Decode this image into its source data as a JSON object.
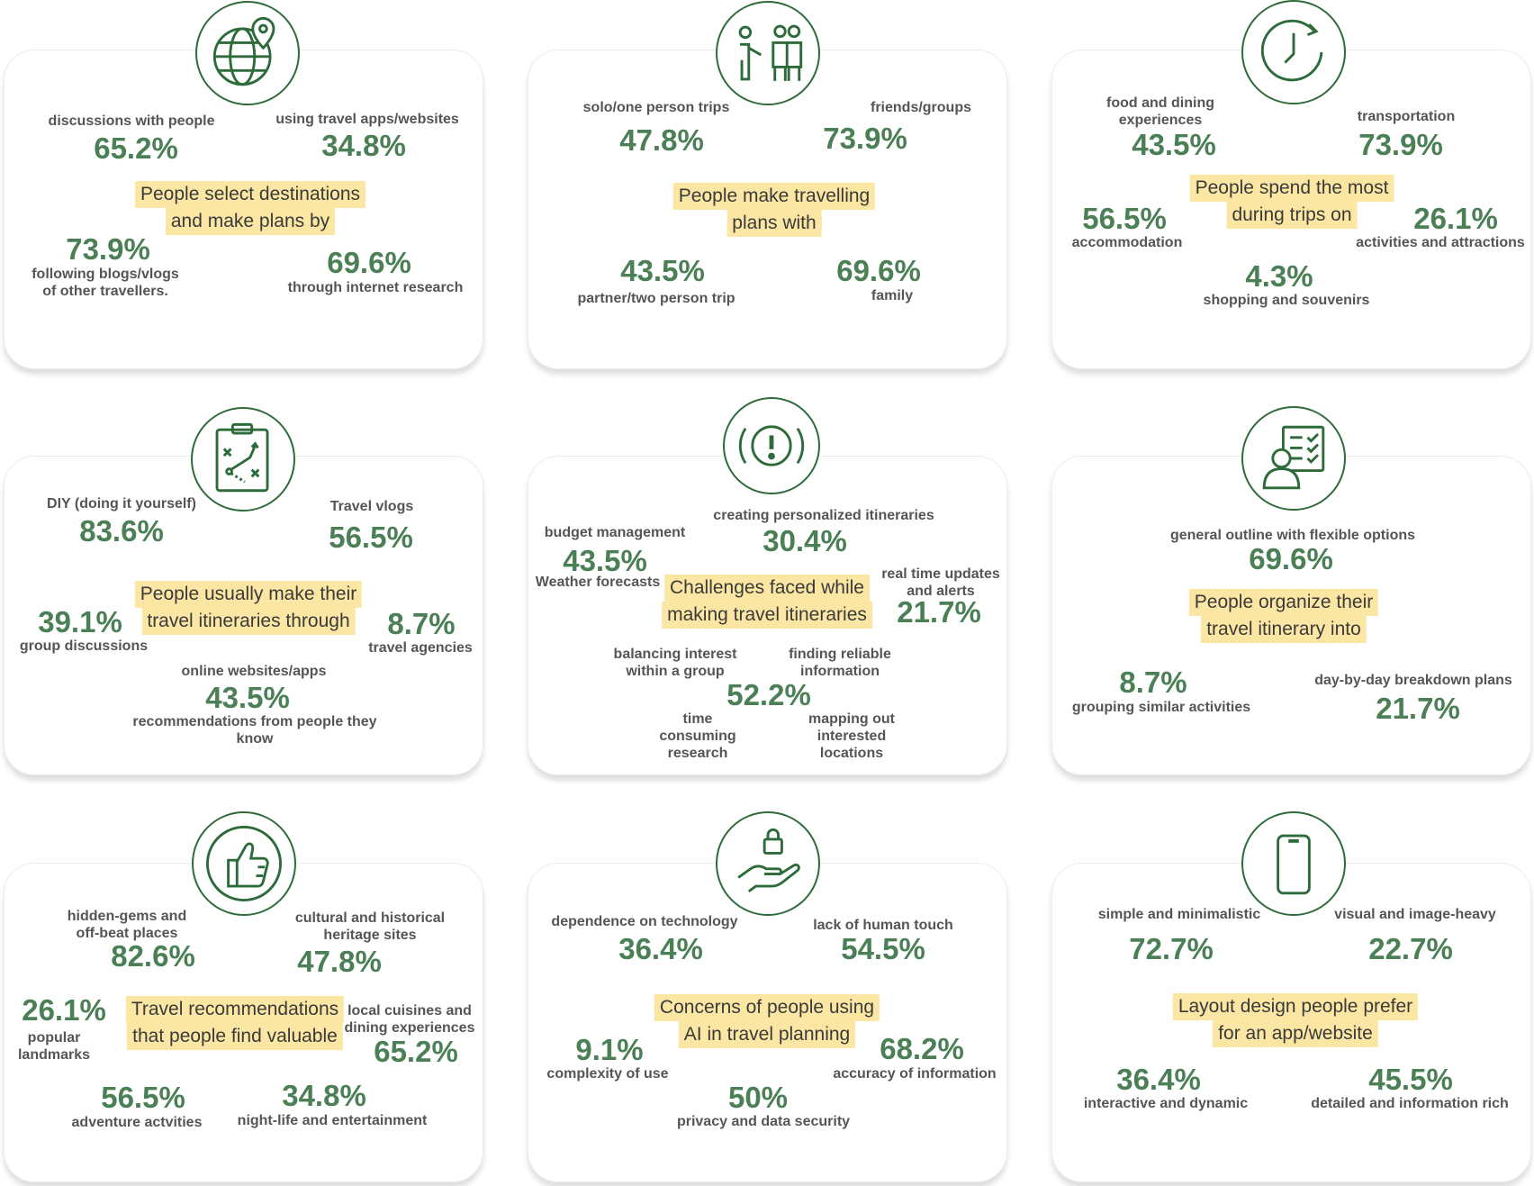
{
  "colors": {
    "accent_green": "#4b7f55",
    "icon_green": "#2e6b3b",
    "highlight_yellow": "#fbe7a3",
    "label_gray": "#555555"
  },
  "cards": [
    {
      "icon": "globe-pin-icon",
      "heading": [
        "People select destinations",
        "and make plans by"
      ],
      "stats": [
        {
          "label": [
            "discussions with people"
          ],
          "value": "65.2%"
        },
        {
          "label": [
            "using travel apps/websites"
          ],
          "value": "34.8%"
        },
        {
          "label": [
            "following blogs/vlogs",
            "of other travellers."
          ],
          "value": "73.9%"
        },
        {
          "label": [
            "through internet research"
          ],
          "value": "69.6%"
        }
      ]
    },
    {
      "icon": "people-group-icon",
      "heading": [
        "People make travelling",
        "plans with"
      ],
      "stats": [
        {
          "label": [
            "solo/one person trips"
          ],
          "value": "47.8%"
        },
        {
          "label": [
            "friends/groups"
          ],
          "value": "73.9%"
        },
        {
          "label": [
            "partner/two person trip"
          ],
          "value": "43.5%"
        },
        {
          "label": [
            "family"
          ],
          "value": "69.6%"
        }
      ]
    },
    {
      "icon": "clock-refresh-icon",
      "heading": [
        "People spend the most",
        "during trips on"
      ],
      "stats": [
        {
          "label": [
            "food and dining",
            "experiences"
          ],
          "value": "43.5%"
        },
        {
          "label": [
            "transportation"
          ],
          "value": "73.9%"
        },
        {
          "label": [
            "accommodation"
          ],
          "value": "56.5%"
        },
        {
          "label": [
            "activities and attractions"
          ],
          "value": "26.1%"
        },
        {
          "label": [
            "shopping and souvenirs"
          ],
          "value": "4.3%"
        }
      ]
    },
    {
      "icon": "clipboard-strategy-icon",
      "heading": [
        "People usually make their",
        "travel itineraries through"
      ],
      "stats": [
        {
          "label": [
            "DIY (doing it yourself)"
          ],
          "value": "83.6%"
        },
        {
          "label": [
            "Travel vlogs"
          ],
          "value": "56.5%"
        },
        {
          "label": [
            "group discussions"
          ],
          "value": "39.1%"
        },
        {
          "label": [
            "travel agencies"
          ],
          "value": "8.7%"
        },
        {
          "label": [
            "online websites/apps"
          ],
          "value": "43.5%"
        },
        {
          "label": [
            "recommendations from people they",
            "know"
          ],
          "value": ""
        }
      ]
    },
    {
      "icon": "alert-exclamation-icon",
      "heading": [
        "Challenges faced while",
        "making travel itineraries"
      ],
      "stats": [
        {
          "label": [
            "budget management"
          ],
          "value": "43.5%"
        },
        {
          "label": [
            "Weather forecasts"
          ],
          "value": ""
        },
        {
          "label": [
            "creating personalized itineraries"
          ],
          "value": "30.4%"
        },
        {
          "label": [
            "real time updates",
            "and alerts"
          ],
          "value": "21.7%"
        },
        {
          "label": [
            "balancing interest",
            "within a group"
          ],
          "value": ""
        },
        {
          "label": [
            "finding reliable",
            "information"
          ],
          "value": "52.2%"
        },
        {
          "label": [
            "time",
            "consuming",
            "research"
          ],
          "value": ""
        },
        {
          "label": [
            "mapping out",
            "interested",
            "locations"
          ],
          "value": ""
        }
      ]
    },
    {
      "icon": "person-checklist-icon",
      "heading": [
        "People organize their",
        "travel itinerary into"
      ],
      "stats": [
        {
          "label": [
            "general outline with flexible options"
          ],
          "value": "69.6%"
        },
        {
          "label": [
            "grouping similar activities"
          ],
          "value": "8.7%"
        },
        {
          "label": [
            "day-by-day breakdown plans"
          ],
          "value": "21.7%"
        }
      ]
    },
    {
      "icon": "thumbs-up-icon",
      "heading": [
        "Travel recommendations",
        "that people find valuable"
      ],
      "stats": [
        {
          "label": [
            "hidden-gems and",
            "off-beat places"
          ],
          "value": "82.6%"
        },
        {
          "label": [
            "cultural and historical",
            "heritage sites"
          ],
          "value": "47.8%"
        },
        {
          "label": [
            "popular",
            "landmarks"
          ],
          "value": "26.1%"
        },
        {
          "label": [
            "local cuisines and",
            "dining experiences"
          ],
          "value": "65.2%"
        },
        {
          "label": [
            "adventure actvities"
          ],
          "value": "56.5%"
        },
        {
          "label": [
            "night-life and entertainment"
          ],
          "value": "34.8%"
        }
      ]
    },
    {
      "icon": "hand-lock-icon",
      "heading": [
        "Concerns of people using",
        "AI in travel planning"
      ],
      "stats": [
        {
          "label": [
            "dependence on technology"
          ],
          "value": "36.4%"
        },
        {
          "label": [
            "lack of human touch"
          ],
          "value": "54.5%"
        },
        {
          "label": [
            "complexity of use"
          ],
          "value": "9.1%"
        },
        {
          "label": [
            "accuracy of information"
          ],
          "value": "68.2%"
        },
        {
          "label": [
            "privacy and data security"
          ],
          "value": "50%"
        }
      ]
    },
    {
      "icon": "smartphone-icon",
      "heading": [
        "Layout design people prefer",
        "for an app/website"
      ],
      "stats": [
        {
          "label": [
            "simple and minimalistic"
          ],
          "value": "72.7%"
        },
        {
          "label": [
            "visual and image-heavy"
          ],
          "value": "22.7%"
        },
        {
          "label": [
            "interactive and dynamic"
          ],
          "value": "36.4%"
        },
        {
          "label": [
            "detailed and information rich"
          ],
          "value": "45.5%"
        }
      ]
    }
  ]
}
